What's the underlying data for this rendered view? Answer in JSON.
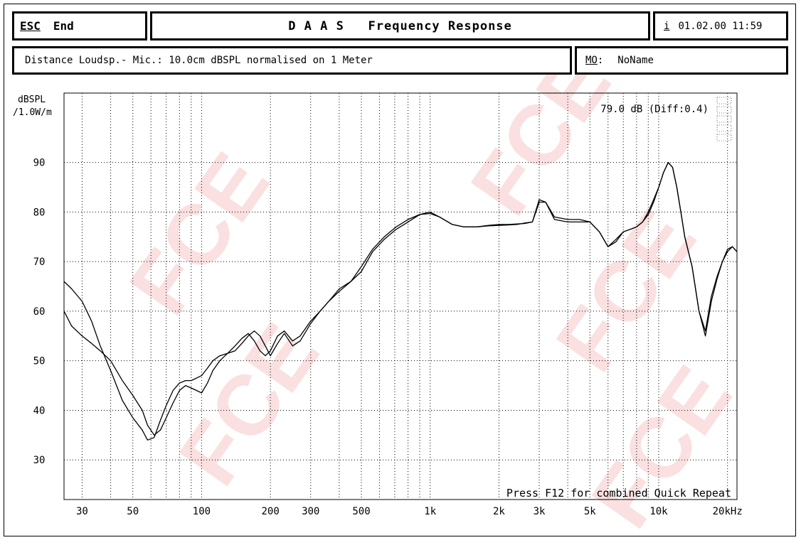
{
  "header": {
    "esc_label": "ESC",
    "end_label": "End",
    "title": "D A A S   Frequency Response",
    "info_key": "i",
    "datetime": "01.02.00 11:59"
  },
  "subheader": {
    "measurement_info": "Distance Loudsp.- Mic.: 10.0cm dBSPL normalised on 1 Meter",
    "mo_key": "MO",
    "mo_sep": ":",
    "mo_value": "NoName"
  },
  "watermark": "FCE",
  "colors": {
    "line": "#000000",
    "grid": "#000000",
    "watermark": "#f4bcbc"
  },
  "chart_data": {
    "type": "line",
    "ylabel_line1": "dBSPL",
    "ylabel_line2": "/1.0W/m",
    "cursor_readout": "79.0 dB (Diff:0.4)",
    "footer_note": "Press F12 for combined Quick Repeat",
    "x_scale": "log",
    "xlim": [
      25,
      22000
    ],
    "ylim": [
      22,
      104
    ],
    "grid": true,
    "x_ticks": [
      {
        "value": 30,
        "label": "30"
      },
      {
        "value": 50,
        "label": "50"
      },
      {
        "value": 100,
        "label": "100"
      },
      {
        "value": 200,
        "label": "200"
      },
      {
        "value": 300,
        "label": "300"
      },
      {
        "value": 500,
        "label": "500"
      },
      {
        "value": 1000,
        "label": "1k"
      },
      {
        "value": 2000,
        "label": "2k"
      },
      {
        "value": 3000,
        "label": "3k"
      },
      {
        "value": 5000,
        "label": "5k"
      },
      {
        "value": 10000,
        "label": "10k"
      },
      {
        "value": 20000,
        "label": "20kHz"
      }
    ],
    "y_ticks": [
      30,
      40,
      50,
      60,
      70,
      80,
      90
    ],
    "series": [
      {
        "x": [
          25,
          27,
          30,
          33,
          36,
          40,
          45,
          50,
          55,
          58,
          62,
          66,
          70,
          75,
          80,
          85,
          90,
          95,
          100,
          106,
          112,
          120,
          130,
          140,
          150,
          160,
          170,
          180,
          190,
          200,
          215,
          230,
          250,
          270,
          300,
          330,
          360,
          400,
          450,
          500,
          560,
          630,
          710,
          800,
          900,
          1000,
          1100,
          1250,
          1400,
          1600,
          1800,
          2000,
          2200,
          2400,
          2600,
          2800,
          3000,
          3200,
          3500,
          4000,
          4500,
          5000,
          5500,
          6000,
          6500,
          7000,
          7500,
          8000,
          8500,
          9000,
          9500,
          10000,
          10500,
          11000,
          11500,
          12000,
          12500,
          13000,
          14000,
          15000,
          16000,
          17000,
          18000,
          19000,
          20000,
          21000,
          22000
        ],
        "y": [
          66,
          64.5,
          62,
          58,
          53,
          48,
          42,
          38.5,
          36,
          34,
          34.5,
          38,
          41,
          44,
          45.5,
          46,
          46,
          46.5,
          47,
          48.5,
          50,
          51,
          51.5,
          53,
          54.5,
          55.5,
          54,
          52,
          51,
          52,
          55,
          56,
          54,
          55,
          58,
          60,
          62,
          64,
          66,
          69,
          72.5,
          75,
          77,
          78.5,
          79.5,
          79.7,
          79,
          77.5,
          77,
          77,
          77.3,
          77.5,
          77.5,
          77.6,
          77.7,
          78,
          82.5,
          82,
          79,
          78.5,
          78.5,
          78,
          76,
          73,
          74.5,
          76,
          76.5,
          77,
          78,
          79.5,
          82,
          85,
          88,
          90,
          89,
          85,
          80,
          75,
          69,
          60,
          56,
          63,
          67,
          70,
          72.5,
          73,
          72
        ]
      },
      {
        "x": [
          25,
          27,
          30,
          33,
          36,
          40,
          45,
          50,
          55,
          58,
          62,
          66,
          70,
          75,
          80,
          85,
          90,
          95,
          100,
          106,
          112,
          120,
          130,
          140,
          150,
          160,
          170,
          180,
          190,
          200,
          215,
          230,
          250,
          270,
          300,
          330,
          360,
          400,
          450,
          500,
          560,
          630,
          710,
          800,
          900,
          1000,
          1100,
          1250,
          1400,
          1600,
          1800,
          2000,
          2200,
          2400,
          2600,
          2800,
          3000,
          3200,
          3500,
          4000,
          4500,
          5000,
          5500,
          6000,
          6500,
          7000,
          7500,
          8000,
          8500,
          9000,
          9500,
          10000,
          10500,
          11000,
          11500,
          12000,
          12500,
          13000,
          14000,
          15000,
          16000,
          17000,
          18000,
          19000,
          20000,
          21000,
          22000
        ],
        "y": [
          60,
          57,
          55,
          53.5,
          52,
          50,
          46,
          43,
          40,
          37,
          35,
          36,
          38.5,
          41.5,
          44,
          45,
          44.5,
          44,
          43.5,
          45.5,
          48,
          50,
          51.5,
          52,
          53.5,
          55,
          56,
          55,
          53,
          51,
          53.5,
          55.5,
          53,
          54,
          57.5,
          60,
          62,
          64.5,
          66,
          68,
          72,
          74.5,
          76.5,
          78,
          79.5,
          80,
          79,
          77.5,
          77,
          77,
          77.2,
          77.3,
          77.4,
          77.5,
          77.8,
          78,
          82,
          82,
          78.5,
          78,
          78,
          78,
          76,
          73,
          74,
          76,
          76.5,
          77,
          78,
          80,
          82.5,
          85,
          88,
          90,
          89,
          85,
          80,
          75,
          69,
          60,
          55,
          62,
          66.5,
          70,
          72,
          73,
          72
        ]
      }
    ]
  }
}
